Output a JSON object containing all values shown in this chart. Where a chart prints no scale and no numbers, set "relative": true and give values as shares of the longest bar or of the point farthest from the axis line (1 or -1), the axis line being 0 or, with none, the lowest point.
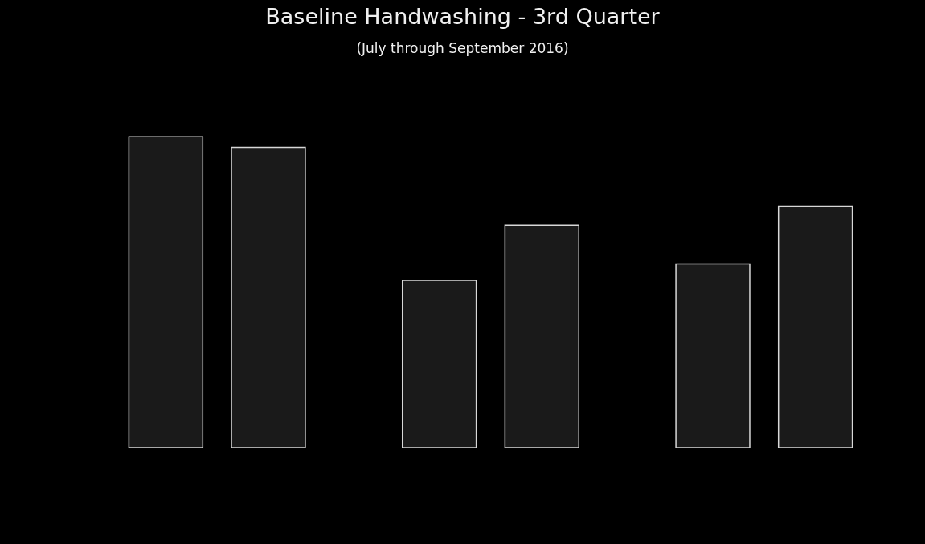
{
  "chart_data": {
    "type": "bar",
    "title": "Baseline Handwashing - 3rd Quarter",
    "subtitle": "(July through September 2016)",
    "categories": [
      null,
      null,
      null
    ],
    "relative": true,
    "series": [
      {
        "color": "#1a1a1a",
        "values": [
          1,
          0.538,
          0.591
        ]
      },
      {
        "color": "#1a1a1a",
        "values": [
          0.966,
          0.716,
          0.777
        ]
      }
    ]
  }
}
